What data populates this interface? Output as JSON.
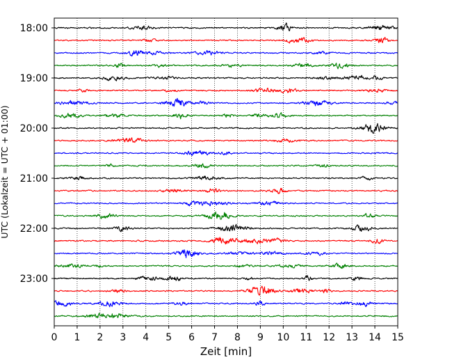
{
  "chart_data": {
    "type": "line",
    "xlabel": "Zeit  [min]",
    "ylabel": "UTC (Lokalzeit = UTC + 01:00)",
    "xlim": [
      0,
      15
    ],
    "x_ticks": [
      0,
      1,
      2,
      3,
      4,
      5,
      6,
      7,
      8,
      9,
      10,
      11,
      12,
      13,
      14,
      15
    ],
    "y_ticks": [
      {
        "label": "18:00",
        "trace_index": 0
      },
      {
        "label": "19:00",
        "trace_index": 4
      },
      {
        "label": "20:00",
        "trace_index": 8
      },
      {
        "label": "21:00",
        "trace_index": 12
      },
      {
        "label": "22:00",
        "trace_index": 16
      },
      {
        "label": "23:00",
        "trace_index": 20
      }
    ],
    "trace_count": 24,
    "trace_colors": [
      "#000000",
      "#ff0000",
      "#0000ff",
      "#008000"
    ],
    "grid": {
      "x": true,
      "y": false,
      "style": "dotted"
    },
    "legend": "none"
  }
}
